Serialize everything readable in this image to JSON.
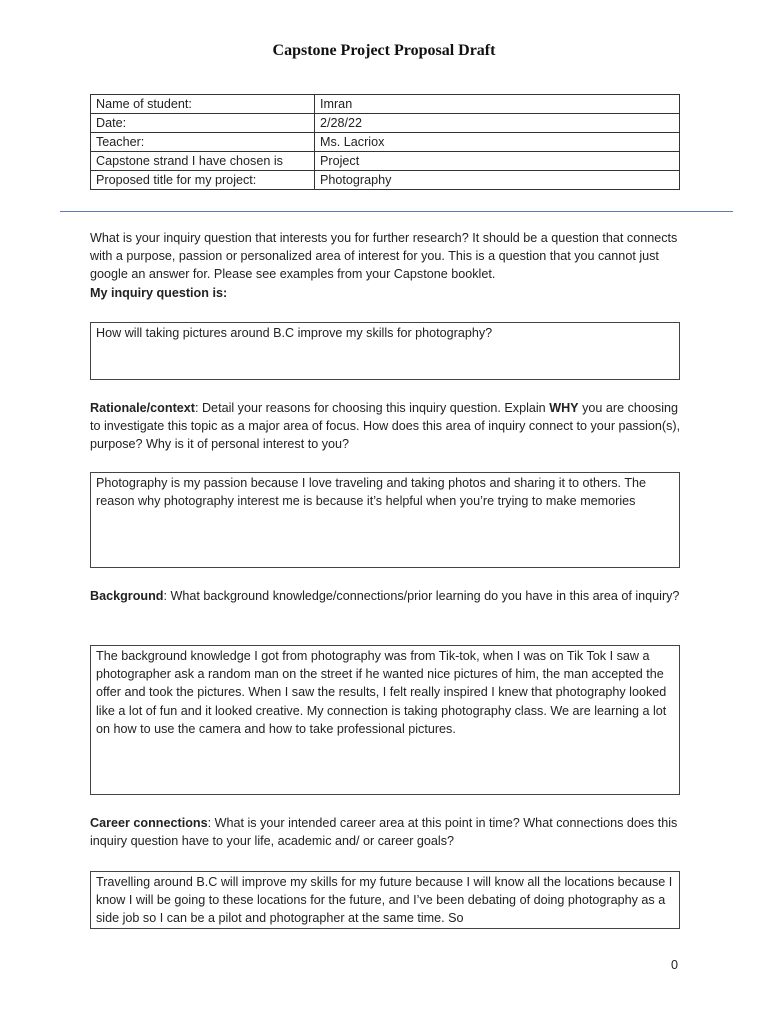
{
  "title": "Capstone Project Proposal Draft",
  "info_table": [
    {
      "label": "Name of student:",
      "value": "Imran"
    },
    {
      "label": "Date:",
      "value": "2/28/22"
    },
    {
      "label": "Teacher:",
      "value": "Ms. Lacriox"
    },
    {
      "label": "Capstone strand I have chosen is",
      "value": "Project"
    },
    {
      "label": "Proposed title for my project:",
      "value": "Photography"
    }
  ],
  "inquiry": {
    "prompt": "What is your inquiry question that interests you for further research? It should be a question that connects with a purpose, passion or personalized area of interest for you. This is a question that you cannot just google an answer for. Please see examples from your Capstone booklet.",
    "label": "My inquiry question is:",
    "answer": "How will taking pictures around B.C improve my skills for photography?"
  },
  "rationale": {
    "heading": "Rationale/context",
    "prompt_a": ": Detail your reasons for choosing this inquiry question. Explain ",
    "prompt_bold": "WHY",
    "prompt_b": " you are choosing to investigate this topic as a major area of focus. How does this area of inquiry connect to your passion(s), purpose? Why is it of personal interest to you?",
    "answer": "Photography is my passion because I love traveling and taking photos and sharing it to others. The reason why photography interest me is because it’s helpful when you’re trying to make memories"
  },
  "background": {
    "heading": "Background",
    "prompt": ": What background knowledge/connections/prior learning do you have in this area of inquiry?",
    "answer": "The background knowledge I got from photography was from Tik-tok, when I was on Tik Tok I saw a photographer ask a random man on the street if he wanted nice pictures of him, the man accepted the offer and took the pictures. When I saw the results, I felt really inspired I knew that photography looked like a lot of fun and it looked creative. My connection is taking photography class. We are learning a lot on how to use the camera and how to take professional pictures."
  },
  "career": {
    "heading": "Career connections",
    "prompt": ": What is your intended career area at this point in time? What connections does this inquiry question have to your life, academic and/ or career goals?",
    "answer": " Travelling around B.C will improve my skills for my future because I will know all the locations because I know I will be going to these locations for the future, and I’ve been debating of doing photography as a side job so I can be a pilot and photographer at the same time. So"
  },
  "page_number": "0"
}
